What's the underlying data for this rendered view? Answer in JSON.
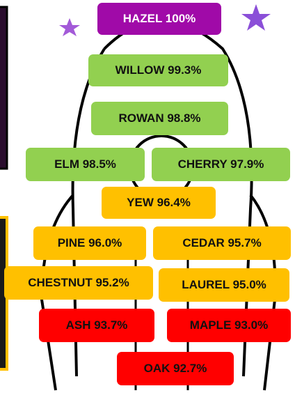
{
  "items": [
    {
      "label": "HAZEL 100%",
      "color": "#a00aa8"
    },
    {
      "label": "WILLOW 99.3%",
      "color": "#92d050"
    },
    {
      "label": "ROWAN 98.8%",
      "color": "#92d050"
    },
    {
      "label": "ELM 98.5%",
      "color": "#92d050"
    },
    {
      "label": "CHERRY 97.9%",
      "color": "#92d050"
    },
    {
      "label": "YEW 96.4%",
      "color": "#ffc000"
    },
    {
      "label": "PINE 96.0%",
      "color": "#ffc000"
    },
    {
      "label": "CEDAR 95.7%",
      "color": "#ffc000"
    },
    {
      "label": "CHESTNUT 95.2%",
      "color": "#ffc000"
    },
    {
      "label": "LAUREL 95.0%",
      "color": "#ffc000"
    },
    {
      "label": "ASH 93.7%",
      "color": "#ff0000"
    },
    {
      "label": "MAPLE 93.0%",
      "color": "#ff0000"
    },
    {
      "label": "OAK 92.7%",
      "color": "#ff0000"
    }
  ]
}
